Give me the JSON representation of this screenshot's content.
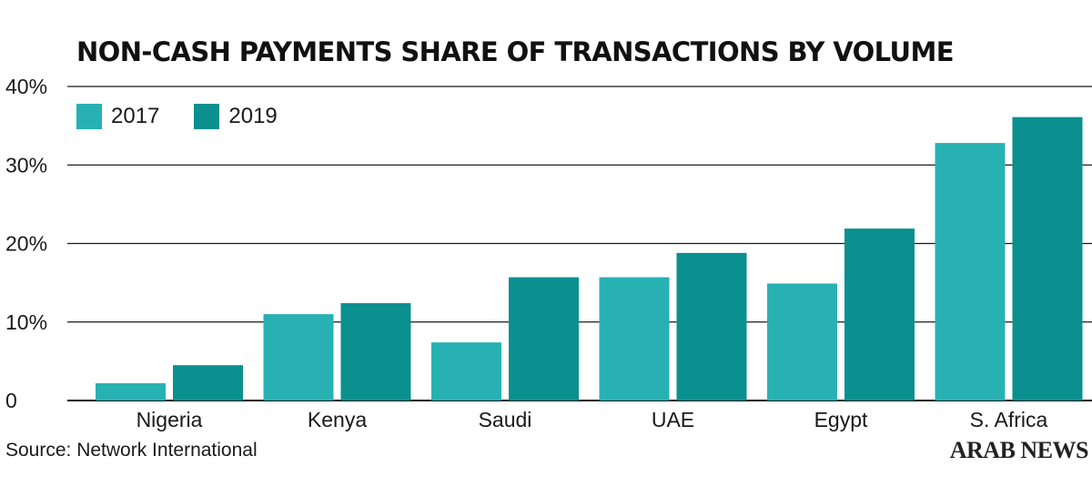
{
  "chart_data": {
    "type": "bar",
    "title": "NON-CASH PAYMENTS SHARE OF TRANSACTIONS BY VOLUME",
    "categories": [
      "Nigeria",
      "Kenya",
      "Saudi",
      "UAE",
      "Egypt",
      "S. Africa"
    ],
    "series": [
      {
        "name": "2017",
        "values": [
          2.2,
          11,
          7.4,
          15.7,
          14.9,
          32.8
        ],
        "color": "#27b1b3"
      },
      {
        "name": "2019",
        "values": [
          4.5,
          12.4,
          15.7,
          18.8,
          21.9,
          36.1
        ],
        "color": "#09908f"
      }
    ],
    "ylim": [
      0,
      40
    ],
    "yticks": [
      0,
      10,
      20,
      30,
      40
    ],
    "ytick_labels": [
      "0",
      "10%",
      "20%",
      "30%",
      "40%"
    ],
    "xlabel": "",
    "ylabel": "",
    "grid": true,
    "legend": "top-left"
  },
  "source": "Source: Network International",
  "brand": "ARAB NEWS"
}
